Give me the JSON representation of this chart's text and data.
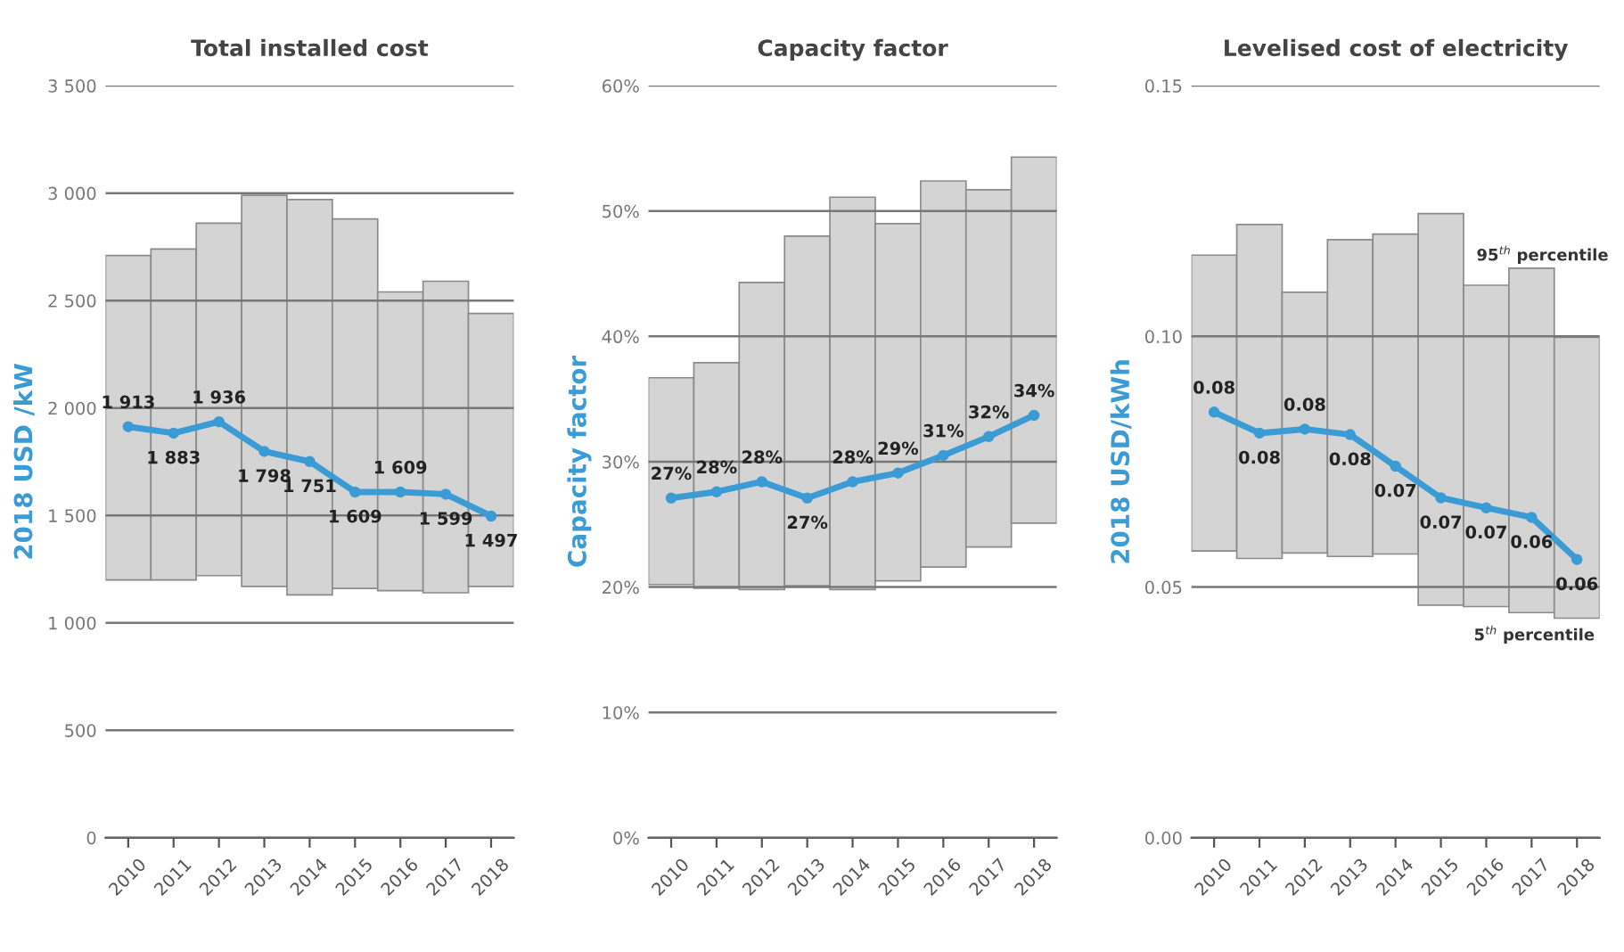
{
  "chart_data": [
    {
      "type": "bar",
      "title": "Total installed cost",
      "ylabel": "2018 USD /kW",
      "categories": [
        "2010",
        "2011",
        "2012",
        "2013",
        "2014",
        "2015",
        "2016",
        "2017",
        "2018"
      ],
      "series": [
        {
          "color": "#d4d4d4",
          "base": [
            1200,
            1200,
            1220,
            1170,
            1130,
            1160,
            1150,
            1140,
            1170
          ],
          "values": [
            1510,
            1540,
            1640,
            1820,
            1840,
            1720,
            1390,
            1450,
            1270
          ]
        },
        {
          "type": "line",
          "color": "#3a9bd5",
          "values": [
            1913,
            1883,
            1936,
            1798,
            1751,
            1609,
            1609,
            1599,
            1497
          ],
          "value_labels": [
            "1 913",
            "1 883",
            "1 936",
            "1 798",
            "1 751",
            "1 609",
            "1 609",
            "1 599",
            "1 497"
          ]
        }
      ],
      "ylim": [
        0,
        3500
      ],
      "yticks": [
        {
          "value": 0,
          "label": "0"
        },
        {
          "value": 500,
          "label": "500"
        },
        {
          "value": 1000,
          "label": "1 000"
        },
        {
          "value": 1500,
          "label": "1 500"
        },
        {
          "value": 2000,
          "label": "2 000"
        },
        {
          "value": 2500,
          "label": "2 500"
        },
        {
          "value": 3000,
          "label": "3 000"
        },
        {
          "value": 3500,
          "label": "3 500"
        }
      ],
      "grid": "y",
      "legend": false,
      "marker": "circle"
    },
    {
      "type": "bar",
      "title": "Capacity factor",
      "ylabel": "Capacity factor",
      "categories": [
        "2010",
        "2011",
        "2012",
        "2013",
        "2014",
        "2015",
        "2016",
        "2017",
        "2018"
      ],
      "series": [
        {
          "color": "#d4d4d4",
          "base": [
            20.2,
            19.9,
            19.8,
            20.1,
            19.8,
            20.5,
            21.6,
            23.2,
            25.1
          ],
          "values": [
            16.5,
            18.0,
            24.5,
            27.9,
            31.3,
            28.5,
            30.8,
            28.5,
            29.2
          ]
        },
        {
          "type": "line",
          "color": "#3a9bd5",
          "values": [
            27.1,
            27.6,
            28.4,
            27.1,
            28.4,
            29.1,
            30.5,
            32.0,
            33.7
          ],
          "value_labels": [
            "27%",
            "28%",
            "28%",
            "27%",
            "28%",
            "29%",
            "31%",
            "32%",
            "34%"
          ]
        }
      ],
      "ylim": [
        0,
        60
      ],
      "yticks": [
        {
          "value": 0,
          "label": "0%"
        },
        {
          "value": 10,
          "label": "10%"
        },
        {
          "value": 20,
          "label": "20%"
        },
        {
          "value": 30,
          "label": "30%"
        },
        {
          "value": 40,
          "label": "40%"
        },
        {
          "value": 50,
          "label": "50%"
        },
        {
          "value": 60,
          "label": "60%"
        }
      ],
      "grid": "y",
      "legend": false,
      "marker": "circle"
    },
    {
      "type": "bar",
      "title": "Levelised cost of electricity",
      "ylabel": "2018 USD/kWh",
      "categories": [
        "2010",
        "2011",
        "2012",
        "2013",
        "2014",
        "2015",
        "2016",
        "2017",
        "2018"
      ],
      "series": [
        {
          "color": "#d4d4d4",
          "base": [
            0.0572,
            0.0557,
            0.0568,
            0.0561,
            0.0566,
            0.0464,
            0.0461,
            0.0449,
            0.0438
          ],
          "values": [
            0.059,
            0.0666,
            0.052,
            0.0632,
            0.0638,
            0.0781,
            0.0641,
            0.0687,
            0.056
          ]
        },
        {
          "type": "line",
          "color": "#3a9bd5",
          "values": [
            0.0849,
            0.0807,
            0.0815,
            0.0804,
            0.0741,
            0.0678,
            0.0658,
            0.0639,
            0.0555
          ],
          "value_labels": [
            "0.08",
            "0.08",
            "0.08",
            "0.08",
            "0.07",
            "0.07",
            "0.07",
            "0.06",
            "0.06"
          ]
        }
      ],
      "ylim": [
        0,
        0.15
      ],
      "yticks": [
        {
          "value": 0,
          "label": "0.00"
        },
        {
          "value": 0.05,
          "label": "0.05"
        },
        {
          "value": 0.1,
          "label": "0.10"
        },
        {
          "value": 0.15,
          "label": "0.15"
        }
      ],
      "annotations": [
        "95$^{th}$ percentile",
        "5$^{th}$ percentile"
      ],
      "grid": "y",
      "legend": false,
      "marker": "circle"
    }
  ]
}
